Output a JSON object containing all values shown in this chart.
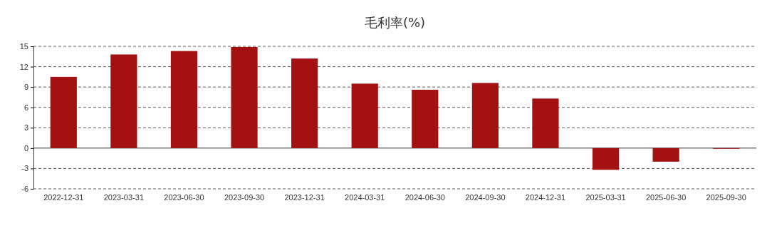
{
  "chart_data": {
    "type": "bar",
    "title": "毛利率(%)",
    "categories": [
      "2022-12-31",
      "2023-03-31",
      "2023-06-30",
      "2023-09-30",
      "2023-12-31",
      "2024-03-31",
      "2024-06-30",
      "2024-09-30",
      "2024-12-31",
      "2025-03-31",
      "2025-06-30",
      "2025-09-30"
    ],
    "values": [
      10.5,
      13.8,
      14.3,
      14.9,
      13.2,
      9.5,
      8.6,
      9.6,
      7.3,
      -3.2,
      -2.0,
      -0.1
    ],
    "color": "#a31111",
    "ylim": [
      -6,
      15
    ],
    "yticks": [
      -6,
      -3,
      0,
      3,
      6,
      9,
      12,
      15
    ],
    "grid": "y"
  }
}
